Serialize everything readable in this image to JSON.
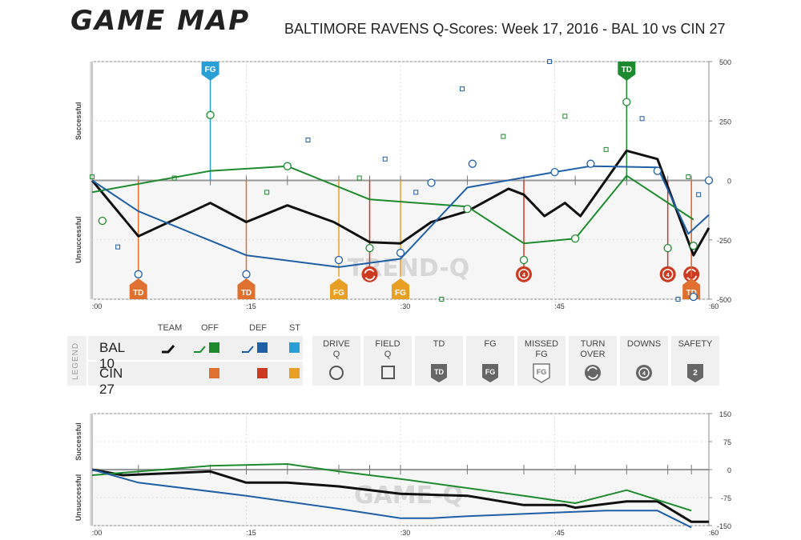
{
  "header": {
    "logo": "GAME MAP",
    "title": "BALTIMORE RAVENS Q-Scores: Week 17, 2016 - BAL 10 vs CIN 27"
  },
  "watermarks": {
    "main": "TREND-Q",
    "mini": "GAME-Q"
  },
  "colors": {
    "team": "#111111",
    "bal_off": "#1e8a2e",
    "bal_def": "#1f5fa6",
    "bal_st": "#2a9fd6",
    "cin_off": "#e07030",
    "cin_def": "#cc3a22",
    "cin_st": "#e8a024",
    "grid": "#cccccc"
  },
  "legend": {
    "side_label": "LEGEND",
    "col_headers": {
      "team": "TEAM",
      "off": "OFF",
      "def": "DEF",
      "st": "ST"
    },
    "teams": [
      {
        "name": "BAL 10"
      },
      {
        "name": "CIN 27"
      }
    ],
    "symbols": [
      {
        "label_1": "DRIVE",
        "label_2": "Q",
        "icon": "circle-icon"
      },
      {
        "label_1": "FIELD",
        "label_2": "Q",
        "icon": "square-icon"
      },
      {
        "label_1": "TD",
        "label_2": "",
        "icon": "td-badge-icon",
        "badge": "TD"
      },
      {
        "label_1": "FG",
        "label_2": "",
        "icon": "fg-badge-icon",
        "badge": "FG"
      },
      {
        "label_1": "MISSED",
        "label_2": "FG",
        "icon": "missed-fg-badge-icon",
        "badge": "FG"
      },
      {
        "label_1": "TURN",
        "label_2": "OVER",
        "icon": "turnover-icon"
      },
      {
        "label_1": "DOWNS",
        "label_2": "",
        "icon": "downs-icon"
      },
      {
        "label_1": "SAFETY",
        "label_2": "",
        "icon": "safety-badge-icon",
        "badge": "2"
      }
    ]
  },
  "chart_data": [
    {
      "type": "line",
      "title": "BALTIMORE RAVENS Q-Scores: Week 17, 2016 - BAL 10 vs CIN 27",
      "ylabel_top": "Successful",
      "ylabel_bottom": "Unsuccessful",
      "xlim": [
        0,
        60
      ],
      "ylim": [
        -500,
        500
      ],
      "x_ticks": [
        ":00",
        ":15",
        ":30",
        ":45",
        ":60"
      ],
      "x_tick_values": [
        0,
        15,
        30,
        45,
        60
      ],
      "y_ticks": [
        "500",
        "250",
        "0",
        "-250",
        "-500"
      ],
      "y_tick_values": [
        500,
        250,
        0,
        -250,
        -500
      ],
      "series": [
        {
          "key": "team",
          "points": [
            [
              0,
              0
            ],
            [
              4.5,
              -235
            ],
            [
              11.5,
              -95
            ],
            [
              15,
              -175
            ],
            [
              19,
              -105
            ],
            [
              23.5,
              -175
            ],
            [
              27,
              -260
            ],
            [
              30,
              -265
            ],
            [
              33,
              -175
            ],
            [
              36.5,
              -130
            ],
            [
              40.5,
              -35
            ],
            [
              42,
              -60
            ],
            [
              44,
              -150
            ],
            [
              46,
              -95
            ],
            [
              47.5,
              -150
            ],
            [
              52,
              125
            ],
            [
              55,
              90
            ],
            [
              58.5,
              -315
            ],
            [
              60,
              -200
            ]
          ]
        },
        {
          "key": "bal_off",
          "points": [
            [
              0,
              -50
            ],
            [
              11.5,
              40
            ],
            [
              19,
              60
            ],
            [
              27,
              -80
            ],
            [
              36.5,
              -110
            ],
            [
              42,
              -265
            ],
            [
              47,
              -245
            ],
            [
              52,
              20
            ],
            [
              58.5,
              -165
            ]
          ]
        },
        {
          "key": "bal_def",
          "points": [
            [
              0,
              0
            ],
            [
              4.5,
              -130
            ],
            [
              15,
              -315
            ],
            [
              24,
              -365
            ],
            [
              30,
              -330
            ],
            [
              36.5,
              -30
            ],
            [
              45,
              35
            ],
            [
              48.5,
              60
            ],
            [
              55,
              55
            ],
            [
              58,
              -225
            ],
            [
              60,
              -145
            ]
          ]
        }
      ],
      "drive_markers": [
        [
          1,
          -170,
          "#1e8a2e"
        ],
        [
          4.5,
          -395,
          "#1f5fa6"
        ],
        [
          11.5,
          275,
          "#1e8a2e"
        ],
        [
          15,
          -395,
          "#1f5fa6"
        ],
        [
          19,
          60,
          "#1e8a2e"
        ],
        [
          24,
          -335,
          "#1f5fa6"
        ],
        [
          27,
          -285,
          "#1e8a2e"
        ],
        [
          30,
          -305,
          "#1f5fa6"
        ],
        [
          33,
          -10,
          "#1f5fa6"
        ],
        [
          36.5,
          -120,
          "#1e8a2e"
        ],
        [
          37,
          70,
          "#1f5fa6"
        ],
        [
          42,
          -335,
          "#1e8a2e"
        ],
        [
          45,
          35,
          "#1f5fa6"
        ],
        [
          47,
          -245,
          "#1e8a2e"
        ],
        [
          48.5,
          70,
          "#1f5fa6"
        ],
        [
          52,
          330,
          "#1e8a2e"
        ],
        [
          55,
          40,
          "#1f5fa6"
        ],
        [
          56,
          -285,
          "#1e8a2e"
        ],
        [
          58.5,
          -275,
          "#1e8a2e"
        ],
        [
          58.5,
          -490,
          "#1f5fa6"
        ],
        [
          60,
          0,
          "#1f5fa6"
        ]
      ],
      "field_markers": [
        [
          0,
          15,
          "#1e8a2e"
        ],
        [
          2.5,
          -280,
          "#1f5fa6"
        ],
        [
          8,
          10,
          "#1e8a2e"
        ],
        [
          17,
          -50,
          "#1e8a2e"
        ],
        [
          21,
          170,
          "#1f5fa6"
        ],
        [
          26,
          10,
          "#1e8a2e"
        ],
        [
          28.5,
          90,
          "#1f5fa6"
        ],
        [
          31.5,
          -50,
          "#1f5fa6"
        ],
        [
          34,
          -500,
          "#1e8a2e"
        ],
        [
          36,
          385,
          "#1f5fa6"
        ],
        [
          40,
          185,
          "#1e8a2e"
        ],
        [
          44.5,
          500,
          "#1f5fa6"
        ],
        [
          46,
          270,
          "#1e8a2e"
        ],
        [
          50,
          130,
          "#1e8a2e"
        ],
        [
          53.5,
          260,
          "#1f5fa6"
        ],
        [
          57,
          -500,
          "#1f5fa6"
        ],
        [
          58,
          15,
          "#1e8a2e"
        ],
        [
          59,
          -60,
          "#1f5fa6"
        ]
      ],
      "events": [
        {
          "x": 4.5,
          "y": -395,
          "kind": "TD",
          "team": "cin",
          "unit": "off",
          "color": "#e07030",
          "label": "TD"
        },
        {
          "x": 11.5,
          "y": 275,
          "kind": "FG",
          "team": "bal",
          "unit": "st",
          "color": "#2a9fd6",
          "label": "FG"
        },
        {
          "x": 15,
          "y": -395,
          "kind": "TD",
          "team": "cin",
          "unit": "off",
          "color": "#e07030",
          "label": "TD"
        },
        {
          "x": 24,
          "y": -335,
          "kind": "FG",
          "team": "cin",
          "unit": "st",
          "color": "#e8a024",
          "label": "FG"
        },
        {
          "x": 27,
          "y": -395,
          "kind": "turnover",
          "team": "cin",
          "unit": "def",
          "color": "#cc3a22",
          "label": ""
        },
        {
          "x": 30,
          "y": -305,
          "kind": "FG",
          "team": "cin",
          "unit": "st",
          "color": "#e8a024",
          "label": "FG"
        },
        {
          "x": 42,
          "y": -395,
          "kind": "downs",
          "team": "cin",
          "unit": "def",
          "color": "#cc3a22",
          "label": ""
        },
        {
          "x": 52,
          "y": 330,
          "kind": "TD",
          "team": "bal",
          "unit": "off",
          "color": "#1e8a2e",
          "label": "TD"
        },
        {
          "x": 56,
          "y": -395,
          "kind": "downs",
          "team": "cin",
          "unit": "def",
          "color": "#cc3a22",
          "label": ""
        },
        {
          "x": 58.3,
          "y": -395,
          "kind": "turnover",
          "team": "cin",
          "unit": "def",
          "color": "#cc3a22",
          "label": ""
        },
        {
          "x": 58.3,
          "y": -395,
          "kind": "TD",
          "team": "cin",
          "unit": "off",
          "color": "#e07030",
          "label": "TD"
        }
      ],
      "drive_ticks": [
        4.5,
        11.5,
        15,
        19,
        24,
        27,
        30,
        36.5,
        42,
        47,
        52,
        56,
        58.3
      ]
    },
    {
      "type": "line",
      "ylabel_top": "Successful",
      "ylabel_bottom": "Unsuccessful",
      "xlim": [
        0,
        60
      ],
      "ylim": [
        -150,
        150
      ],
      "x_ticks": [
        ":00",
        ":15",
        ":30",
        ":45",
        ":60"
      ],
      "x_tick_values": [
        0,
        15,
        30,
        45,
        60
      ],
      "y_ticks": [
        "150",
        "75",
        "0",
        "-75",
        "-150"
      ],
      "y_tick_values": [
        150,
        75,
        0,
        -75,
        -150
      ],
      "series": [
        {
          "key": "team",
          "points": [
            [
              0,
              0
            ],
            [
              3,
              -15
            ],
            [
              11.5,
              -5
            ],
            [
              15,
              -35
            ],
            [
              19,
              -35
            ],
            [
              24,
              -45
            ],
            [
              30,
              -65
            ],
            [
              36.5,
              -70
            ],
            [
              42,
              -95
            ],
            [
              46,
              -95
            ],
            [
              47,
              -102
            ],
            [
              52,
              -85
            ],
            [
              55,
              -85
            ],
            [
              58.3,
              -140
            ],
            [
              60,
              -140
            ]
          ]
        },
        {
          "key": "bal_off",
          "points": [
            [
              0,
              -15
            ],
            [
              11.5,
              10
            ],
            [
              19,
              15
            ],
            [
              24,
              -5
            ],
            [
              30,
              -25
            ],
            [
              42,
              -70
            ],
            [
              47,
              -90
            ],
            [
              52,
              -55
            ],
            [
              58.3,
              -110
            ]
          ]
        },
        {
          "key": "bal_def",
          "points": [
            [
              0,
              0
            ],
            [
              4.5,
              -35
            ],
            [
              15,
              -70
            ],
            [
              24,
              -105
            ],
            [
              30,
              -130
            ],
            [
              33,
              -130
            ],
            [
              36.5,
              -125
            ],
            [
              45,
              -115
            ],
            [
              50,
              -110
            ],
            [
              55,
              -110
            ],
            [
              58.3,
              -155
            ]
          ]
        }
      ],
      "drive_ticks": [
        4.5,
        11.5,
        15,
        19,
        24,
        27,
        30,
        36.5,
        42,
        47,
        52,
        56,
        58.3
      ]
    }
  ]
}
